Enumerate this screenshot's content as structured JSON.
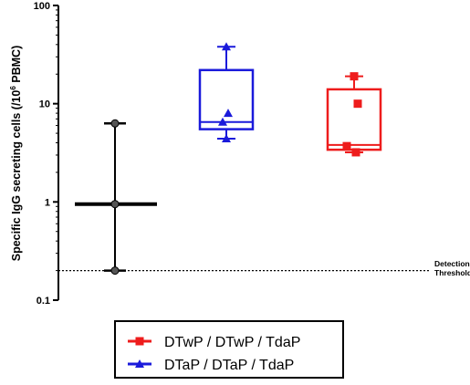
{
  "chart_data": {
    "type": "box",
    "ylabel_main": "Specific IgG secreting cells (/10",
    "ylabel_sup": "6",
    "ylabel_end": " PBMC)",
    "yscale": "log",
    "ylim": [
      0.1,
      100
    ],
    "yticks": [
      {
        "value": 0.1,
        "label": "0.1"
      },
      {
        "value": 1,
        "label": "1"
      },
      {
        "value": 10,
        "label": "10"
      },
      {
        "value": 100,
        "label": "100"
      }
    ],
    "threshold": {
      "value": 0.2,
      "label_line1": "Detection",
      "label_line2": "Threshold"
    },
    "groups": [
      {
        "name": "",
        "color": "#000000",
        "style": "median-range",
        "min": 0.2,
        "median": 0.95,
        "max": 6.3,
        "points": [
          0.2,
          0.95,
          6.3
        ],
        "marker": "circle"
      },
      {
        "name": "DTaP / DTaP / TdaP",
        "color": "#1a1adb",
        "style": "box",
        "min": 4.4,
        "q1": 5.5,
        "median": 6.5,
        "q3": 22,
        "max": 38,
        "points": [
          38,
          8,
          6.5,
          4.4
        ],
        "marker": "triangle"
      },
      {
        "name": "DTwP / DTwP / TdaP",
        "color": "#ee1c1c",
        "style": "box",
        "min": 3.2,
        "q1": 3.4,
        "median": 3.8,
        "q3": 14,
        "max": 19,
        "points": [
          19,
          10,
          3.7,
          3.2
        ],
        "marker": "square"
      }
    ],
    "legend": [
      {
        "label": "DTwP / DTwP / TdaP",
        "color": "#ee1c1c",
        "marker": "square"
      },
      {
        "label": "DTaP / DTaP / TdaP",
        "color": "#1a1adb",
        "marker": "triangle"
      }
    ]
  }
}
